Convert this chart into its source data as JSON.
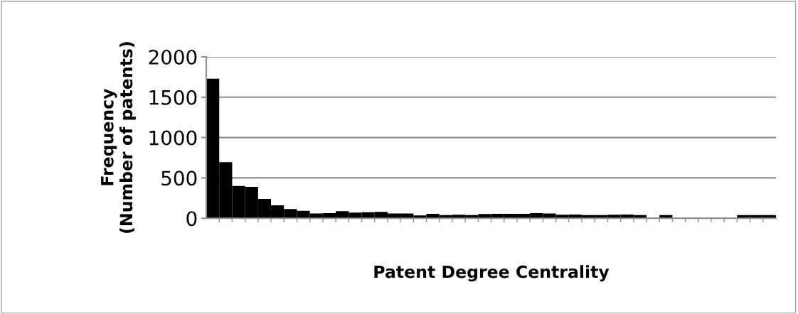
{
  "chart_data": {
    "type": "bar",
    "xlabel": "Patent Degree Centrality",
    "ylabel": "Frequency\n(Number of patents)",
    "categories": [
      null,
      null,
      null,
      null,
      null,
      null,
      null,
      null,
      null,
      null,
      null,
      null,
      null,
      null,
      null,
      null,
      null,
      null,
      null,
      null,
      null,
      null,
      null,
      null,
      null,
      null,
      null,
      null,
      null,
      null,
      null,
      null,
      null,
      null,
      null,
      null,
      null,
      null,
      null,
      null,
      null,
      null,
      null,
      null
    ],
    "values": [
      1730,
      695,
      400,
      390,
      240,
      160,
      115,
      93,
      58,
      64,
      88,
      70,
      75,
      79,
      58,
      58,
      35,
      55,
      40,
      44,
      40,
      53,
      55,
      55,
      55,
      64,
      58,
      44,
      46,
      40,
      40,
      44,
      46,
      40,
      0,
      40,
      0,
      0,
      0,
      0,
      0,
      40,
      40,
      40
    ],
    "color": "#000000",
    "ylim": [
      0,
      2000
    ],
    "yticks": [
      0,
      500,
      1000,
      1500,
      2000
    ],
    "grid": "y",
    "legend": false
  }
}
